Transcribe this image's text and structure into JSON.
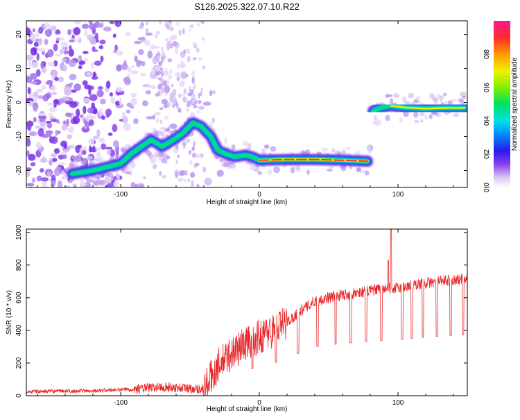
{
  "title": "S126.2025.322.07.10.R22",
  "chart_data": [
    {
      "type": "heatmap",
      "xlabel": "Height of straight line (km)",
      "ylabel": "Frequency (Hz)",
      "xlim": [
        -168,
        150
      ],
      "ylim": [
        -25,
        24
      ],
      "xticks": [
        -100,
        0,
        100
      ],
      "yticks": [
        -20,
        -10,
        0,
        10,
        20
      ],
      "colorbar": {
        "label": "Normalized spectral amplitude",
        "range": [
          0,
          1
        ],
        "ticks": [
          0.0,
          0.2,
          0.4,
          0.6,
          0.8
        ],
        "tick_labels": [
          "0.0",
          "0.2",
          "0.4",
          "0.6",
          "0.8"
        ]
      },
      "ridge": [
        {
          "x": -135,
          "y": -21
        },
        {
          "x": -120,
          "y": -20
        },
        {
          "x": -110,
          "y": -19
        },
        {
          "x": -100,
          "y": -18
        },
        {
          "x": -92,
          "y": -15
        },
        {
          "x": -85,
          "y": -13
        },
        {
          "x": -78,
          "y": -11
        },
        {
          "x": -70,
          "y": -13
        },
        {
          "x": -62,
          "y": -11
        },
        {
          "x": -55,
          "y": -9
        },
        {
          "x": -48,
          "y": -6
        },
        {
          "x": -42,
          "y": -7
        },
        {
          "x": -35,
          "y": -10
        },
        {
          "x": -30,
          "y": -14
        },
        {
          "x": -25,
          "y": -15
        },
        {
          "x": -18,
          "y": -16
        },
        {
          "x": -10,
          "y": -15.5
        },
        {
          "x": -5,
          "y": -16
        },
        {
          "x": 0,
          "y": -17
        },
        {
          "x": 20,
          "y": -16.8
        },
        {
          "x": 40,
          "y": -16.8
        },
        {
          "x": 60,
          "y": -17
        },
        {
          "x": 78,
          "y": -17.3
        },
        {
          "x": 82,
          "y": -2.5
        },
        {
          "x": 88,
          "y": -1.5
        },
        {
          "x": 95,
          "y": -1
        },
        {
          "x": 105,
          "y": -1.5
        },
        {
          "x": 120,
          "y": -1.8
        },
        {
          "x": 135,
          "y": -1.6
        },
        {
          "x": 148,
          "y": -1.6
        }
      ]
    },
    {
      "type": "line",
      "xlabel": "Height of straight line (km)",
      "ylabel": "SNR (10 * v/v)",
      "xlim": [
        -168,
        150
      ],
      "ylim": [
        0,
        1020
      ],
      "xticks": [
        -100,
        0,
        100
      ],
      "yticks": [
        0,
        200,
        400,
        600,
        800,
        1000
      ],
      "color": "#e8282b",
      "envelope": [
        {
          "x": -168,
          "y": 25
        },
        {
          "x": -120,
          "y": 30
        },
        {
          "x": -90,
          "y": 40
        },
        {
          "x": -70,
          "y": 55
        },
        {
          "x": -50,
          "y": 45
        },
        {
          "x": -40,
          "y": 40
        },
        {
          "x": -30,
          "y": 180
        },
        {
          "x": -20,
          "y": 260
        },
        {
          "x": -10,
          "y": 320
        },
        {
          "x": 0,
          "y": 360
        },
        {
          "x": 10,
          "y": 400
        },
        {
          "x": 20,
          "y": 450
        },
        {
          "x": 30,
          "y": 520
        },
        {
          "x": 40,
          "y": 580
        },
        {
          "x": 55,
          "y": 610
        },
        {
          "x": 70,
          "y": 630
        },
        {
          "x": 85,
          "y": 650
        },
        {
          "x": 100,
          "y": 660
        },
        {
          "x": 120,
          "y": 690
        },
        {
          "x": 135,
          "y": 705
        },
        {
          "x": 150,
          "y": 715
        }
      ],
      "peaks": [
        {
          "x": 95,
          "y": 1020
        },
        {
          "x": 93,
          "y": 830
        }
      ],
      "dips": [
        -5,
        12,
        28,
        42,
        55,
        66,
        77,
        88,
        103,
        110,
        118,
        128,
        138,
        147
      ]
    }
  ]
}
